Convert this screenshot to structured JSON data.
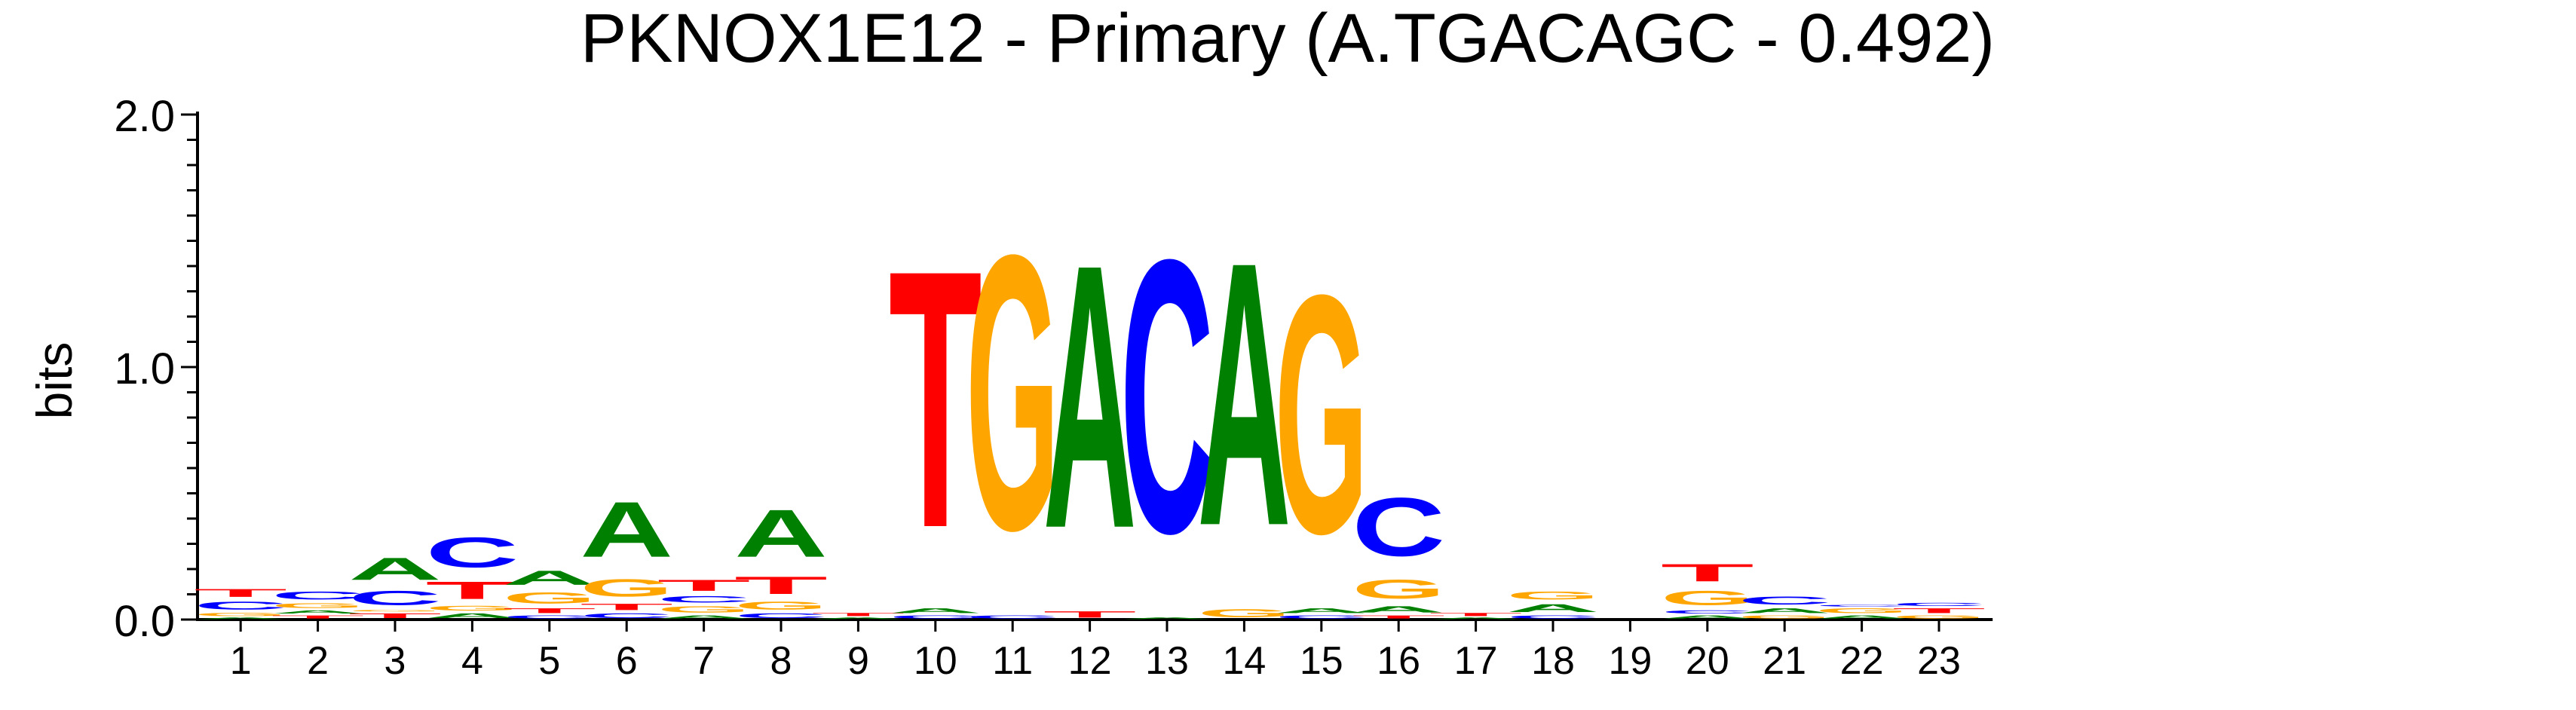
{
  "chart_data": {
    "type": "sequence-logo",
    "title": "PKNOX1E12 - Primary (A.TGACAGC - 0.492)",
    "ylabel": "bits",
    "ylim": [
      0,
      2.0
    ],
    "yticks": [
      "0.0",
      "1.0",
      "2.0"
    ],
    "positions": [
      "1",
      "2",
      "3",
      "4",
      "5",
      "6",
      "7",
      "8",
      "9",
      "10",
      "11",
      "12",
      "13",
      "14",
      "15",
      "16",
      "17",
      "18",
      "19",
      "20",
      "21",
      "22",
      "23"
    ],
    "colors": {
      "A": "#008000",
      "C": "#0000ff",
      "G": "#ffa500",
      "T": "#ff0000"
    },
    "stacks": [
      [
        {
          "l": "A",
          "h": 0.01
        },
        {
          "l": "G",
          "h": 0.02
        },
        {
          "l": "C",
          "h": 0.05
        },
        {
          "l": "T",
          "h": 0.05
        }
      ],
      [
        {
          "l": "T",
          "h": 0.02
        },
        {
          "l": "A",
          "h": 0.02
        },
        {
          "l": "G",
          "h": 0.03
        },
        {
          "l": "C",
          "h": 0.05
        }
      ],
      [
        {
          "l": "T",
          "h": 0.03
        },
        {
          "l": "G",
          "h": 0.01
        },
        {
          "l": "C",
          "h": 0.09
        },
        {
          "l": "A",
          "h": 0.14
        }
      ],
      [
        {
          "l": "A",
          "h": 0.03
        },
        {
          "l": "G",
          "h": 0.03
        },
        {
          "l": "T",
          "h": 0.11
        },
        {
          "l": "C",
          "h": 0.19
        }
      ],
      [
        {
          "l": "C",
          "h": 0.02
        },
        {
          "l": "T",
          "h": 0.03
        },
        {
          "l": "G",
          "h": 0.07
        },
        {
          "l": "A",
          "h": 0.09
        }
      ],
      [
        {
          "l": "C",
          "h": 0.03
        },
        {
          "l": "T",
          "h": 0.04
        },
        {
          "l": "G",
          "h": 0.11
        },
        {
          "l": "A",
          "h": 0.35
        }
      ],
      [
        {
          "l": "A",
          "h": 0.02
        },
        {
          "l": "G",
          "h": 0.04
        },
        {
          "l": "C",
          "h": 0.04
        },
        {
          "l": "T",
          "h": 0.07
        }
      ],
      [
        {
          "l": "C",
          "h": 0.03
        },
        {
          "l": "G",
          "h": 0.05
        },
        {
          "l": "T",
          "h": 0.11
        },
        {
          "l": "A",
          "h": 0.3
        }
      ],
      [
        {
          "l": "A",
          "h": 0.01
        },
        {
          "l": "T",
          "h": 0.02
        }
      ],
      [
        {
          "l": "C",
          "h": 0.02
        },
        {
          "l": "A",
          "h": 0.03
        },
        {
          "l": "T",
          "h": 1.63
        }
      ],
      [
        {
          "l": "C",
          "h": 0.02
        },
        {
          "l": "G",
          "h": 1.74
        }
      ],
      [
        {
          "l": "T",
          "h": 0.04
        },
        {
          "l": "A",
          "h": 1.67
        }
      ],
      [
        {
          "l": "A",
          "h": 0.01
        },
        {
          "l": "C",
          "h": 1.73
        }
      ],
      [
        {
          "l": "G",
          "h": 0.05
        },
        {
          "l": "A",
          "h": 1.67
        }
      ],
      [
        {
          "l": "C",
          "h": 0.02
        },
        {
          "l": "A",
          "h": 0.03
        },
        {
          "l": "G",
          "h": 1.51
        }
      ],
      [
        {
          "l": "T",
          "h": 0.02
        },
        {
          "l": "A",
          "h": 0.04
        },
        {
          "l": "G",
          "h": 0.12
        },
        {
          "l": "C",
          "h": 0.37
        }
      ],
      [
        {
          "l": "A",
          "h": 0.01
        },
        {
          "l": "T",
          "h": 0.02
        }
      ],
      [
        {
          "l": "C",
          "h": 0.02
        },
        {
          "l": "A",
          "h": 0.05
        },
        {
          "l": "G",
          "h": 0.05
        }
      ],
      [],
      [
        {
          "l": "A",
          "h": 0.02
        },
        {
          "l": "C",
          "h": 0.02
        },
        {
          "l": "G",
          "h": 0.09
        },
        {
          "l": "T",
          "h": 0.11
        }
      ],
      [
        {
          "l": "G",
          "h": 0.02
        },
        {
          "l": "A",
          "h": 0.03
        },
        {
          "l": "C",
          "h": 0.05
        }
      ],
      [
        {
          "l": "A",
          "h": 0.02
        },
        {
          "l": "G",
          "h": 0.03
        },
        {
          "l": "C",
          "h": 0.01
        }
      ],
      [
        {
          "l": "G",
          "h": 0.02
        },
        {
          "l": "T",
          "h": 0.03
        },
        {
          "l": "C",
          "h": 0.02
        }
      ]
    ]
  }
}
